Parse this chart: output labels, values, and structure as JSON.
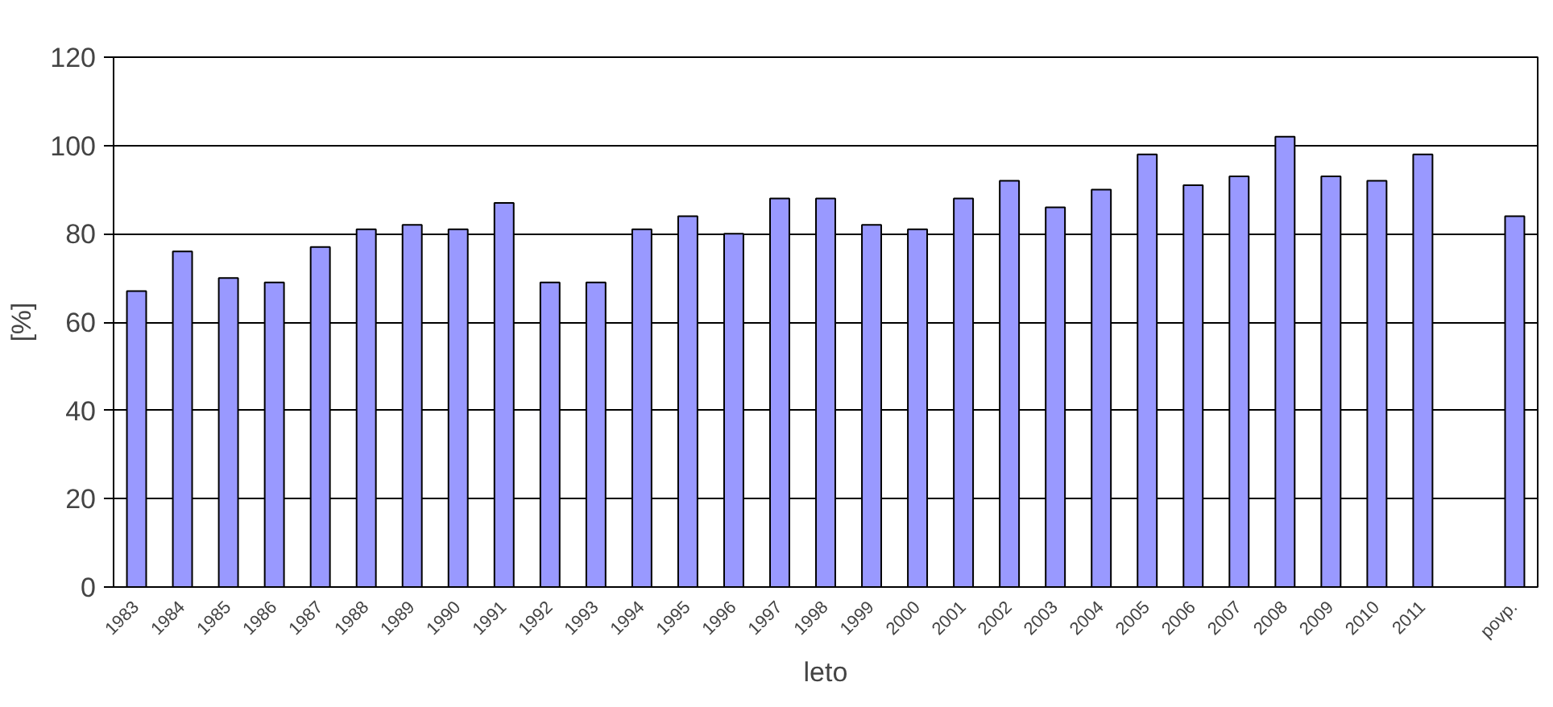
{
  "chart_data": {
    "type": "bar",
    "xlabel": "leto",
    "ylabel": "[%]",
    "categories": [
      "1983",
      "1984",
      "1985",
      "1986",
      "1987",
      "1988",
      "1989",
      "1990",
      "1991",
      "1992",
      "1993",
      "1994",
      "1995",
      "1996",
      "1997",
      "1998",
      "1999",
      "2000",
      "2001",
      "2002",
      "2003",
      "2004",
      "2005",
      "2006",
      "2007",
      "2008",
      "2009",
      "2010",
      "2011",
      null,
      "povp."
    ],
    "values": [
      67,
      76,
      70,
      69,
      77,
      81,
      82,
      81,
      87,
      69,
      69,
      81,
      84,
      80,
      88,
      88,
      82,
      81,
      88,
      92,
      86,
      90,
      98,
      91,
      93,
      102,
      93,
      92,
      98,
      null,
      84
    ],
    "color": "#9999ff",
    "ylim": [
      0,
      120
    ],
    "yticks": [
      0,
      20,
      40,
      60,
      80,
      100,
      120
    ],
    "grid": "y"
  }
}
